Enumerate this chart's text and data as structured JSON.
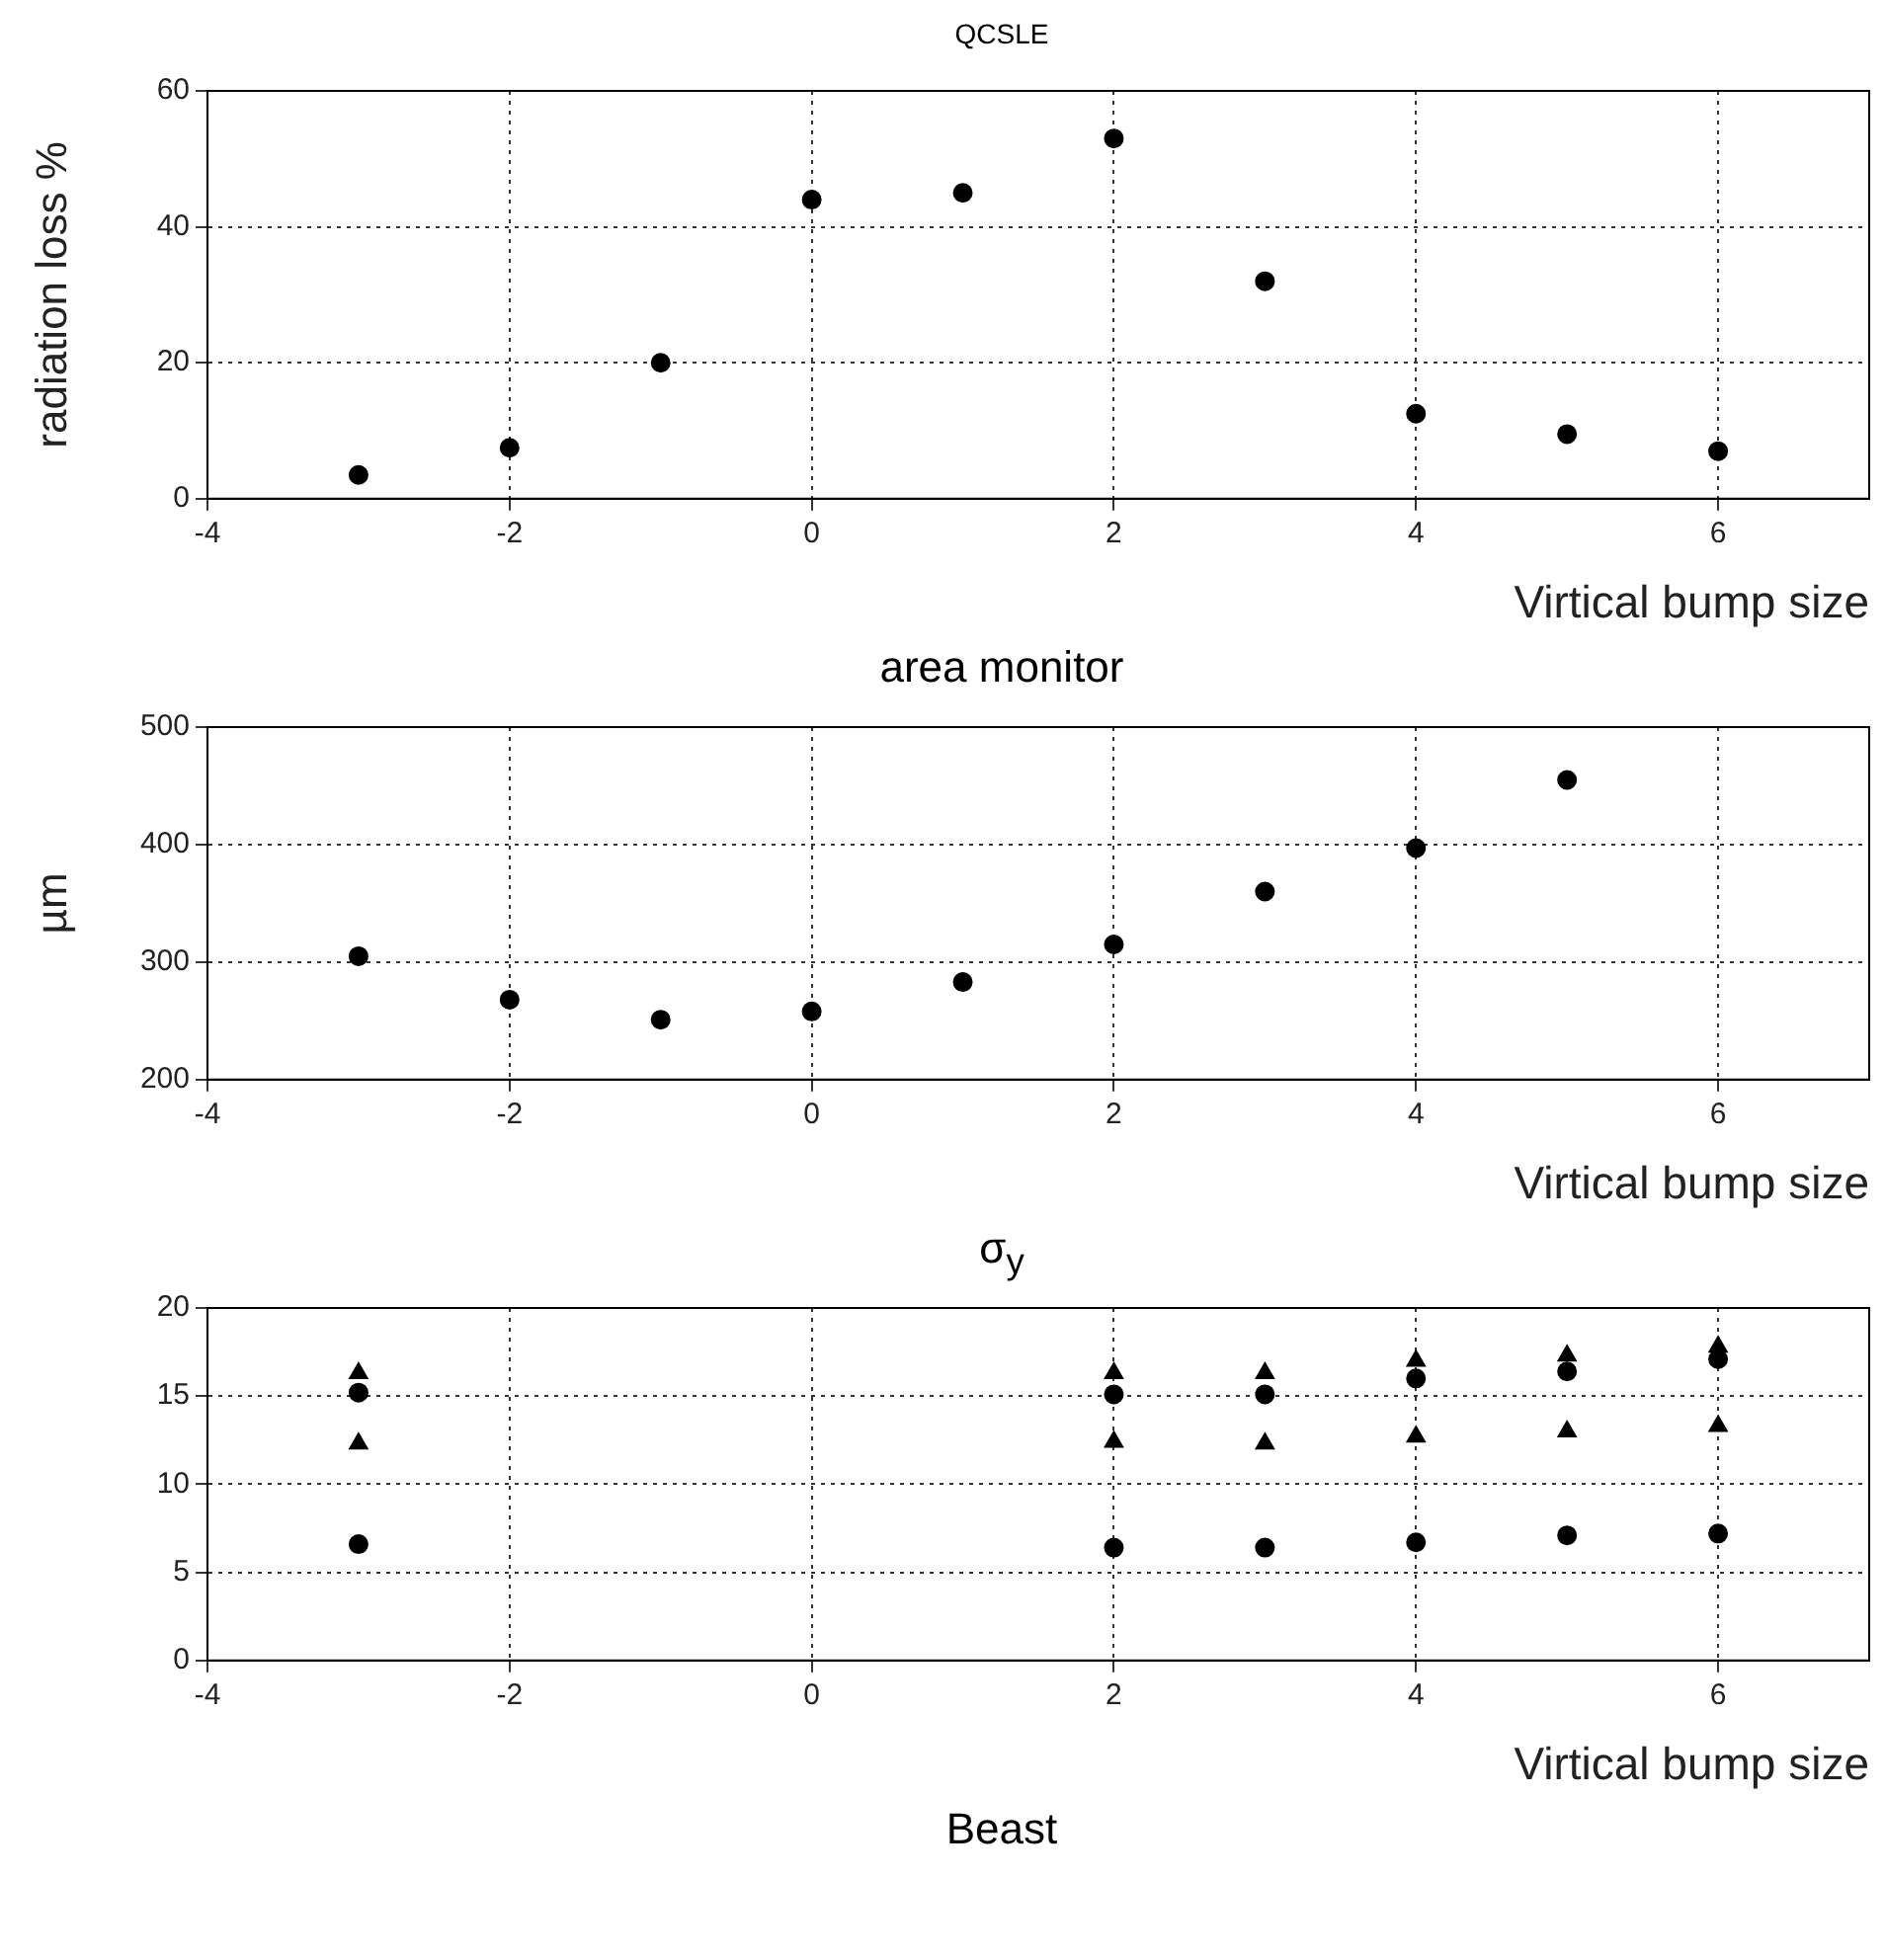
{
  "chart_data": [
    {
      "type": "scatter",
      "title": "QCSLE",
      "ylabel": "radiation loss %",
      "xlabel": "Virtical bump size",
      "annotations": [
        "area monitor"
      ],
      "x": [
        -3,
        -2,
        -1,
        0,
        1,
        2,
        3,
        4,
        5,
        6
      ],
      "series": [
        {
          "color": "#000000",
          "marker": "circle",
          "values": [
            3.5,
            7.5,
            20,
            44,
            45,
            53,
            32,
            12.5,
            9.5,
            7
          ]
        }
      ],
      "xlim": [
        -4,
        7
      ],
      "xticks": [
        -4,
        -2,
        0,
        2,
        4,
        6
      ],
      "ylim": [
        0,
        60
      ],
      "yticks": [
        0,
        20,
        40,
        60
      ],
      "grid": true
    },
    {
      "type": "scatter",
      "ylabel": "µm",
      "xlabel": "Virtical bump size",
      "annotations": [
        "σ$_{y}$"
      ],
      "x": [
        -3,
        -2,
        -1,
        0,
        1,
        2,
        3,
        4,
        5
      ],
      "series": [
        {
          "color": "#000000",
          "marker": "circle",
          "values": [
            305,
            268,
            251,
            258,
            283,
            315,
            360,
            397,
            455
          ]
        }
      ],
      "xlim": [
        -4,
        7
      ],
      "xticks": [
        -4,
        -2,
        0,
        2,
        4,
        6
      ],
      "ylim": [
        200,
        500
      ],
      "yticks": [
        200,
        300,
        400,
        500
      ],
      "grid": true
    },
    {
      "type": "scatter",
      "xlabel": "Virtical bump size",
      "annotations": [
        "Beast"
      ],
      "x": [
        -3,
        2,
        3,
        4,
        5,
        6
      ],
      "series": [
        {
          "color": "#000000",
          "marker": "triangle",
          "values": [
            16.3,
            16.3,
            16.3,
            17,
            17.3,
            17.8
          ]
        },
        {
          "color": "#000000",
          "marker": "circle",
          "values": [
            15.2,
            15.1,
            15.1,
            16,
            16.4,
            17.1
          ]
        },
        {
          "color": "#000000",
          "marker": "triangle",
          "values": [
            12.3,
            12.4,
            12.3,
            12.7,
            13,
            13.3
          ]
        },
        {
          "color": "#000000",
          "marker": "circle",
          "values": [
            6.6,
            6.4,
            6.4,
            6.7,
            7.1,
            7.2
          ]
        }
      ],
      "xlim": [
        -4,
        7
      ],
      "xticks": [
        -4,
        -2,
        0,
        2,
        4,
        6
      ],
      "ylim": [
        0,
        20
      ],
      "yticks": [
        0,
        5,
        10,
        15,
        20
      ],
      "grid": true
    }
  ]
}
